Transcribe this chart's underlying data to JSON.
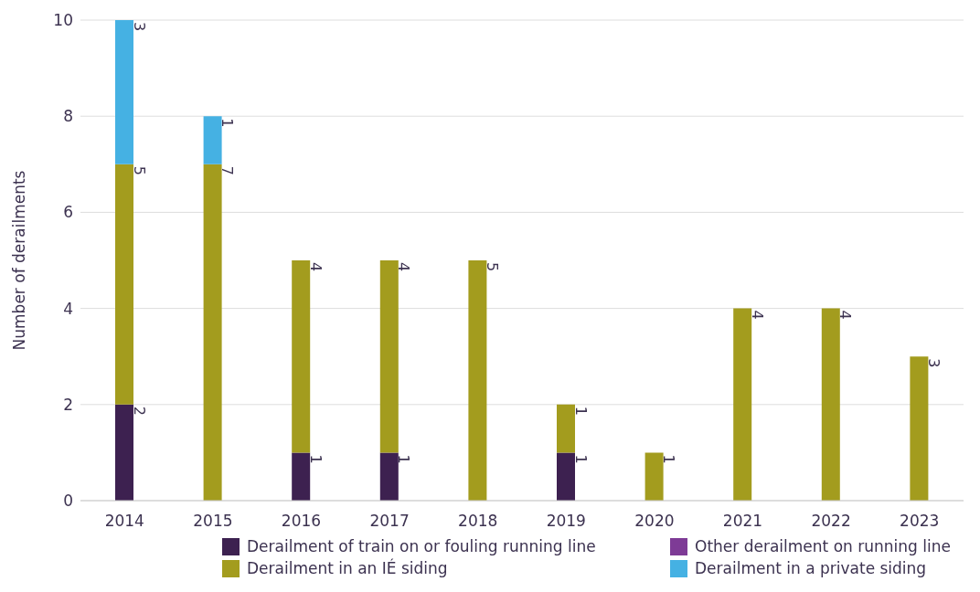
{
  "chart_data": {
    "type": "bar",
    "stacked": true,
    "ylabel": "Number of derailments",
    "categories": [
      "2014",
      "2015",
      "2016",
      "2017",
      "2018",
      "2019",
      "2020",
      "2021",
      "2022",
      "2023"
    ],
    "series": [
      {
        "name": "Derailment of train on or fouling running line",
        "color": "#3d2150",
        "values": [
          2,
          null,
          1,
          1,
          null,
          1,
          null,
          null,
          null,
          null
        ]
      },
      {
        "name": "Other derailment on running line",
        "color": "#7e3b96",
        "values": [
          null,
          null,
          null,
          null,
          null,
          null,
          null,
          null,
          null,
          null
        ]
      },
      {
        "name": "Derailment in an IÉ siding",
        "color": "#a39c1e",
        "values": [
          5,
          7,
          4,
          4,
          5,
          1,
          1,
          4,
          4,
          3
        ]
      },
      {
        "name": "Derailment in a private siding",
        "color": "#45b1e3",
        "values": [
          3,
          1,
          null,
          null,
          null,
          null,
          null,
          null,
          null,
          null
        ]
      }
    ],
    "ylim": [
      0,
      10
    ],
    "yticks": [
      0,
      2,
      4,
      6,
      8,
      10
    ],
    "grid": "y",
    "legend": "bottom",
    "data_labels": true
  }
}
